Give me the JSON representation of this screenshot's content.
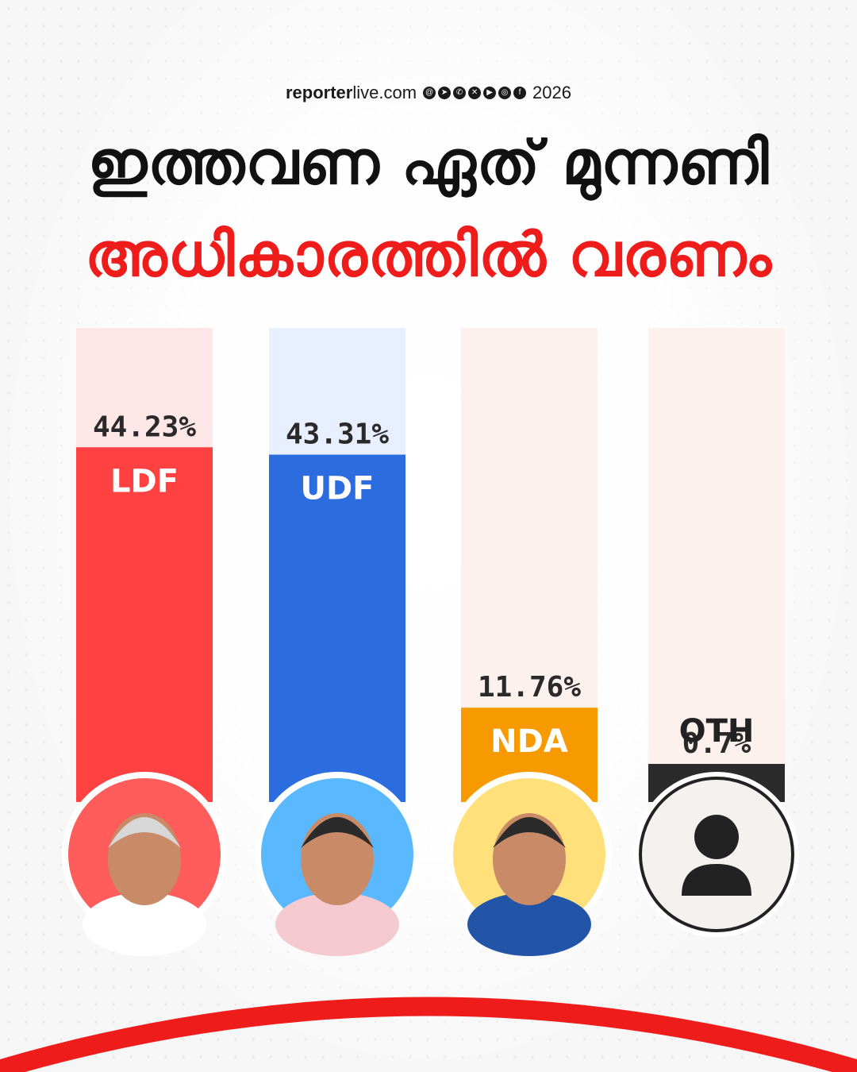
{
  "header": {
    "site_prefix": "reporter",
    "site_suffix": "live.com",
    "year": "2026",
    "social_icons": [
      "threads-icon",
      "telegram-icon",
      "whatsapp-icon",
      "x-icon",
      "youtube-icon",
      "instagram-icon",
      "facebook-icon"
    ]
  },
  "headline": {
    "line1": "ഇത്തവണ ഏത് മുന്നണി",
    "line2": "അധികാരത്തിൽ വരണം"
  },
  "colors": {
    "headline_line1": "#111111",
    "headline_line2": "#ef1c1c",
    "accent_arc": "#ef1c1c"
  },
  "chart_data": {
    "type": "bar",
    "categories": [
      "LDF",
      "UDF",
      "NDA",
      "OTH"
    ],
    "values": [
      44.23,
      43.31,
      11.76,
      0.7
    ],
    "value_labels": [
      "44.23%",
      "43.31%",
      "11.76%",
      "0.7%"
    ],
    "ylim": [
      0,
      50
    ],
    "bar_colors": [
      "#ff4141",
      "#2b6cdf",
      "#f79a00",
      "#2b2b2b"
    ],
    "track_colors": [
      "#fde7e7",
      "#e8effe",
      "#fdf1ee",
      "#fdf1ee"
    ],
    "avatar_colors": [
      "#ff5c5c",
      "#5ab8ff",
      "#ffe07a",
      "#f3f2ee"
    ],
    "avatar_icons": [
      "portrait-photo",
      "portrait-photo",
      "portrait-photo",
      "person-placeholder-icon"
    ],
    "grid": false,
    "legend": "none"
  }
}
